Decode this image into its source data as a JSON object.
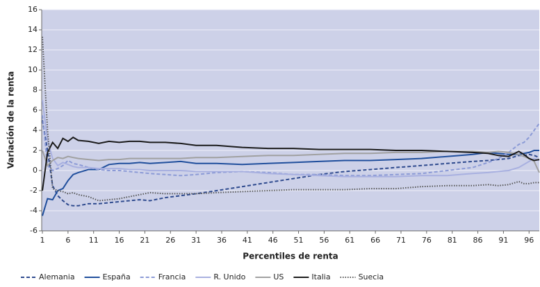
{
  "chart_data": {
    "type": "line",
    "x_label": "Percentiles de renta",
    "y_label": "Variación de la renta",
    "x": [
      1,
      2,
      3,
      4,
      5,
      6,
      7,
      8,
      10,
      12,
      14,
      16,
      18,
      20,
      22,
      25,
      28,
      31,
      35,
      40,
      45,
      50,
      55,
      60,
      65,
      70,
      75,
      80,
      85,
      88,
      90,
      92,
      94,
      95,
      96,
      97,
      98
    ],
    "xlim": [
      1,
      98
    ],
    "xticks": [
      1,
      6,
      11,
      16,
      21,
      26,
      31,
      36,
      41,
      46,
      51,
      56,
      61,
      66,
      71,
      76,
      81,
      86,
      91,
      96
    ],
    "ylim": [
      -6,
      16
    ],
    "yticks": [
      -6,
      -4,
      -2,
      0,
      2,
      4,
      6,
      8,
      10,
      12,
      14,
      16
    ],
    "grid": true,
    "series": [
      {
        "name": "Alemania",
        "color": "#2e4a8e",
        "dash": "dashed",
        "values": [
          5,
          2,
          -1.5,
          -2.5,
          -3,
          -3.4,
          -3.5,
          -3.5,
          -3.3,
          -3.3,
          -3.2,
          -3.1,
          -3,
          -2.9,
          -3,
          -2.7,
          -2.5,
          -2.3,
          -2,
          -1.6,
          -1.2,
          -0.8,
          -0.4,
          -0.1,
          0.1,
          0.3,
          0.5,
          0.7,
          0.9,
          1.0,
          1.1,
          1.2,
          1.5,
          1.5,
          1.6,
          1.5,
          1.3
        ]
      },
      {
        "name": "España",
        "color": "#1f4e9c",
        "dash": "solid",
        "values": [
          -4.5,
          -2.8,
          -2.9,
          -2.0,
          -1.8,
          -1.0,
          -0.4,
          -0.2,
          0.1,
          0.1,
          0.6,
          0.7,
          0.7,
          0.8,
          0.7,
          0.8,
          0.9,
          0.7,
          0.7,
          0.6,
          0.7,
          0.8,
          0.9,
          1.0,
          1.0,
          1.1,
          1.2,
          1.4,
          1.6,
          1.8,
          1.7,
          1.6,
          1.6,
          1.7,
          1.8,
          2.0,
          2.0
        ]
      },
      {
        "name": "Francia",
        "color": "#8b9ad6",
        "dash": "dashed",
        "values": [
          5.5,
          0.5,
          0,
          0.2,
          0.5,
          1.0,
          0.7,
          0.6,
          0.3,
          0.1,
          0,
          0,
          -0.1,
          -0.2,
          -0.3,
          -0.4,
          -0.5,
          -0.4,
          -0.2,
          -0.1,
          -0.2,
          -0.4,
          -0.4,
          -0.5,
          -0.5,
          -0.4,
          -0.3,
          0,
          0.3,
          0.8,
          1.2,
          1.8,
          2.6,
          2.8,
          3.3,
          4.0,
          4.7
        ]
      },
      {
        "name": "R. Unido",
        "color": "#a8b0e0",
        "dash": "solid",
        "values": [
          7,
          3,
          1.2,
          0.5,
          0.8,
          0.6,
          0.4,
          0.3,
          0.3,
          0.2,
          0.2,
          0.2,
          0.1,
          0.1,
          0,
          0,
          0,
          -0.1,
          -0.1,
          -0.1,
          -0.3,
          -0.4,
          -0.5,
          -0.6,
          -0.6,
          -0.6,
          -0.5,
          -0.5,
          -0.3,
          -0.2,
          -0.1,
          0,
          0.3,
          0.6,
          0.9,
          1.2,
          1.0
        ]
      },
      {
        "name": "US",
        "color": "#a0a0a0",
        "dash": "solid",
        "values": [
          2.0,
          0.5,
          1.0,
          1.3,
          1.2,
          1.4,
          1.3,
          1.2,
          1.1,
          1.0,
          1.1,
          1.1,
          1.2,
          1.2,
          1.2,
          1.2,
          1.2,
          1.3,
          1.3,
          1.4,
          1.5,
          1.5,
          1.6,
          1.7,
          1.7,
          1.8,
          1.8,
          1.9,
          1.9,
          1.8,
          1.9,
          1.8,
          1.6,
          1.4,
          1.2,
          0.9,
          -0.2
        ]
      },
      {
        "name": "Italia",
        "color": "#1a1a1a",
        "dash": "solid",
        "values": [
          -2,
          1.8,
          2.8,
          2.2,
          3.2,
          2.9,
          3.3,
          3.0,
          2.9,
          2.7,
          2.9,
          2.8,
          2.9,
          2.9,
          2.8,
          2.8,
          2.7,
          2.5,
          2.5,
          2.3,
          2.2,
          2.2,
          2.1,
          2.1,
          2.1,
          2.0,
          2.0,
          1.9,
          1.8,
          1.7,
          1.5,
          1.4,
          1.9,
          1.6,
          1.2,
          1.0,
          1.1
        ]
      },
      {
        "name": "Suecia",
        "color": "#555555",
        "dash": "dotted",
        "values": [
          13.3,
          4.0,
          -1.8,
          -2.0,
          -2.1,
          -2.3,
          -2.2,
          -2.4,
          -2.6,
          -3.0,
          -2.9,
          -2.8,
          -2.6,
          -2.4,
          -2.2,
          -2.3,
          -2.3,
          -2.3,
          -2.2,
          -2.1,
          -2.0,
          -1.9,
          -1.9,
          -1.9,
          -1.8,
          -1.8,
          -1.6,
          -1.5,
          -1.5,
          -1.4,
          -1.5,
          -1.4,
          -1.1,
          -1.3,
          -1.3,
          -1.2,
          -1.2
        ]
      }
    ]
  }
}
